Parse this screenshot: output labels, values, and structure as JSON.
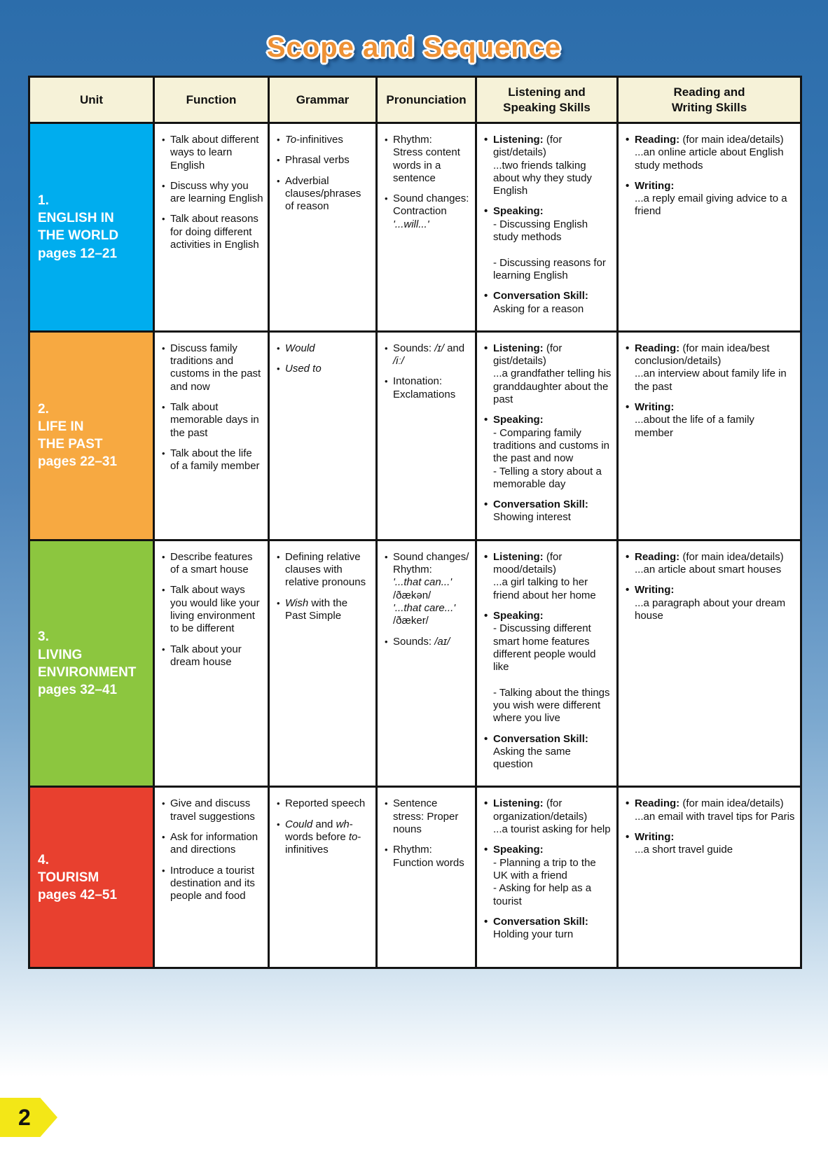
{
  "page": {
    "title": "Scope and Sequence",
    "page_number": "2",
    "accent_colors": {
      "title_orange": "#ee9135",
      "header_cream": "#f6f2d8",
      "page_tab_yellow": "#f3e717"
    }
  },
  "table": {
    "headers": [
      "Unit",
      "Function",
      "Grammar",
      "Pronunciation",
      "Listening and\nSpeaking Skills",
      "Reading and\nWriting Skills"
    ],
    "rows": [
      {
        "unit": {
          "number": "1.",
          "title": "ENGLISH IN\nTHE WORLD",
          "pages": "pages 12–21",
          "color": "#00adee"
        },
        "function": [
          [
            {
              "t": "Talk about different ways to learn English"
            }
          ],
          [
            {
              "t": "Discuss why you are learning English"
            }
          ],
          [
            {
              "t": "Talk about reasons for doing different activities in English"
            }
          ]
        ],
        "grammar": [
          [
            {
              "t": "To",
              "i": true
            },
            {
              "t": "-infinitives"
            }
          ],
          [
            {
              "t": "Phrasal verbs"
            }
          ],
          [
            {
              "t": "Adverbial clauses/phrases of reason"
            }
          ]
        ],
        "pronunciation": [
          [
            {
              "t": "Rhythm:\nStress content words in a sentence"
            }
          ],
          [
            {
              "t": "Sound changes:\nContraction\n"
            },
            {
              "t": "'...will...'",
              "i": true
            }
          ]
        ],
        "listening_speaking": [
          [
            {
              "t": "Listening:",
              "b": true
            },
            {
              "t": " (for gist/details)\n...two friends talking about why they study English"
            }
          ],
          [
            {
              "t": "Speaking:",
              "b": true
            },
            {
              "t": "\n- Discussing English study methods\n\n- Discussing reasons for learning English"
            }
          ],
          [
            {
              "t": "Conversation Skill:",
              "b": true
            },
            {
              "t": "\nAsking for a reason"
            }
          ]
        ],
        "reading_writing": [
          [
            {
              "t": "Reading:",
              "b": true
            },
            {
              "t": " (for main idea/details)\n...an online article about English study methods"
            }
          ],
          [
            {
              "t": "Writing:",
              "b": true
            },
            {
              "t": "\n...a reply email giving advice to a friend"
            }
          ]
        ]
      },
      {
        "unit": {
          "number": "2.",
          "title": "LIFE IN\nTHE PAST",
          "pages": "pages 22–31",
          "color": "#f7a941"
        },
        "function": [
          [
            {
              "t": "Discuss family traditions and customs in the past and now"
            }
          ],
          [
            {
              "t": "Talk about memorable days in the past"
            }
          ],
          [
            {
              "t": "Talk about the life of a family member"
            }
          ]
        ],
        "grammar": [
          [
            {
              "t": "Would",
              "i": true
            }
          ],
          [
            {
              "t": "Used to",
              "i": true
            }
          ]
        ],
        "pronunciation": [
          [
            {
              "t": "Sounds: "
            },
            {
              "t": "/ɪ/",
              "i": true
            },
            {
              "t": " and "
            },
            {
              "t": "/iː/",
              "i": true
            }
          ],
          [
            {
              "t": "Intonation:\nExclamations"
            }
          ]
        ],
        "listening_speaking": [
          [
            {
              "t": "Listening:",
              "b": true
            },
            {
              "t": " (for gist/details)\n...a grandfather telling his granddaughter about the past"
            }
          ],
          [
            {
              "t": "Speaking:",
              "b": true
            },
            {
              "t": "\n- Comparing family traditions and customs in the past and now\n- Telling a story about a memorable day"
            }
          ],
          [
            {
              "t": "Conversation Skill:",
              "b": true
            },
            {
              "t": "\nShowing interest"
            }
          ]
        ],
        "reading_writing": [
          [
            {
              "t": "Reading:",
              "b": true
            },
            {
              "t": " (for main idea/best conclusion/details)\n...an interview about family life in the past"
            }
          ],
          [
            {
              "t": "Writing:",
              "b": true
            },
            {
              "t": "\n...about the life of a family member"
            }
          ]
        ]
      },
      {
        "unit": {
          "number": "3.",
          "title": "LIVING\nENVIRONMENT",
          "pages": "pages 32–41",
          "color": "#8cc63f"
        },
        "function": [
          [
            {
              "t": "Describe features of a smart house"
            }
          ],
          [
            {
              "t": "Talk about ways you would like your living environment to be different"
            }
          ],
          [
            {
              "t": "Talk about your dream house"
            }
          ]
        ],
        "grammar": [
          [
            {
              "t": "Defining relative clauses with relative pronouns"
            }
          ],
          [
            {
              "t": "Wish",
              "i": true
            },
            {
              "t": " with the Past Simple"
            }
          ]
        ],
        "pronunciation": [
          [
            {
              "t": "Sound changes/\nRhythm:\n"
            },
            {
              "t": "'...that can...'",
              "i": true
            },
            {
              "t": "\n/ðækən/\n"
            },
            {
              "t": "'...that care...'",
              "i": true
            },
            {
              "t": "\n/ðæker/"
            }
          ],
          [
            {
              "t": "Sounds: "
            },
            {
              "t": "/aɪ/",
              "i": true
            }
          ]
        ],
        "listening_speaking": [
          [
            {
              "t": "Listening:",
              "b": true
            },
            {
              "t": " (for mood/details)\n...a girl talking to her friend about her home"
            }
          ],
          [
            {
              "t": "Speaking:",
              "b": true
            },
            {
              "t": "\n- Discussing different smart home features different people would like\n\n- Talking about the things you wish were different where you live"
            }
          ],
          [
            {
              "t": "Conversation Skill:",
              "b": true
            },
            {
              "t": "\nAsking the same question"
            }
          ]
        ],
        "reading_writing": [
          [
            {
              "t": "Reading:",
              "b": true
            },
            {
              "t": " (for main idea/details)\n...an article about smart houses"
            }
          ],
          [
            {
              "t": "Writing:",
              "b": true
            },
            {
              "t": "\n...a paragraph about your dream house"
            }
          ]
        ]
      },
      {
        "unit": {
          "number": "4.",
          "title": "TOURISM",
          "pages": "pages 42–51",
          "color": "#e8402f"
        },
        "function": [
          [
            {
              "t": "Give and discuss travel suggestions"
            }
          ],
          [
            {
              "t": "Ask for information and directions"
            }
          ],
          [
            {
              "t": "Introduce a tourist destination and its people and food"
            }
          ]
        ],
        "grammar": [
          [
            {
              "t": "Reported speech"
            }
          ],
          [
            {
              "t": "Could",
              "i": true
            },
            {
              "t": " and "
            },
            {
              "t": "wh",
              "i": true
            },
            {
              "t": "-words before "
            },
            {
              "t": "to",
              "i": true
            },
            {
              "t": "-infinitives"
            }
          ]
        ],
        "pronunciation": [
          [
            {
              "t": "Sentence stress: Proper nouns"
            }
          ],
          [
            {
              "t": "Rhythm:\nFunction words"
            }
          ]
        ],
        "listening_speaking": [
          [
            {
              "t": "Listening:",
              "b": true
            },
            {
              "t": " (for organization/details)\n...a tourist asking for help"
            }
          ],
          [
            {
              "t": "Speaking:",
              "b": true
            },
            {
              "t": "\n- Planning a trip to the UK with a friend\n- Asking for help as a tourist"
            }
          ],
          [
            {
              "t": "Conversation Skill:",
              "b": true
            },
            {
              "t": "\nHolding your turn"
            }
          ]
        ],
        "reading_writing": [
          [
            {
              "t": "Reading:",
              "b": true
            },
            {
              "t": " (for main idea/details)\n...an email with travel tips for Paris"
            }
          ],
          [
            {
              "t": "Writing:",
              "b": true
            },
            {
              "t": "\n...a short travel guide"
            }
          ]
        ]
      }
    ]
  }
}
